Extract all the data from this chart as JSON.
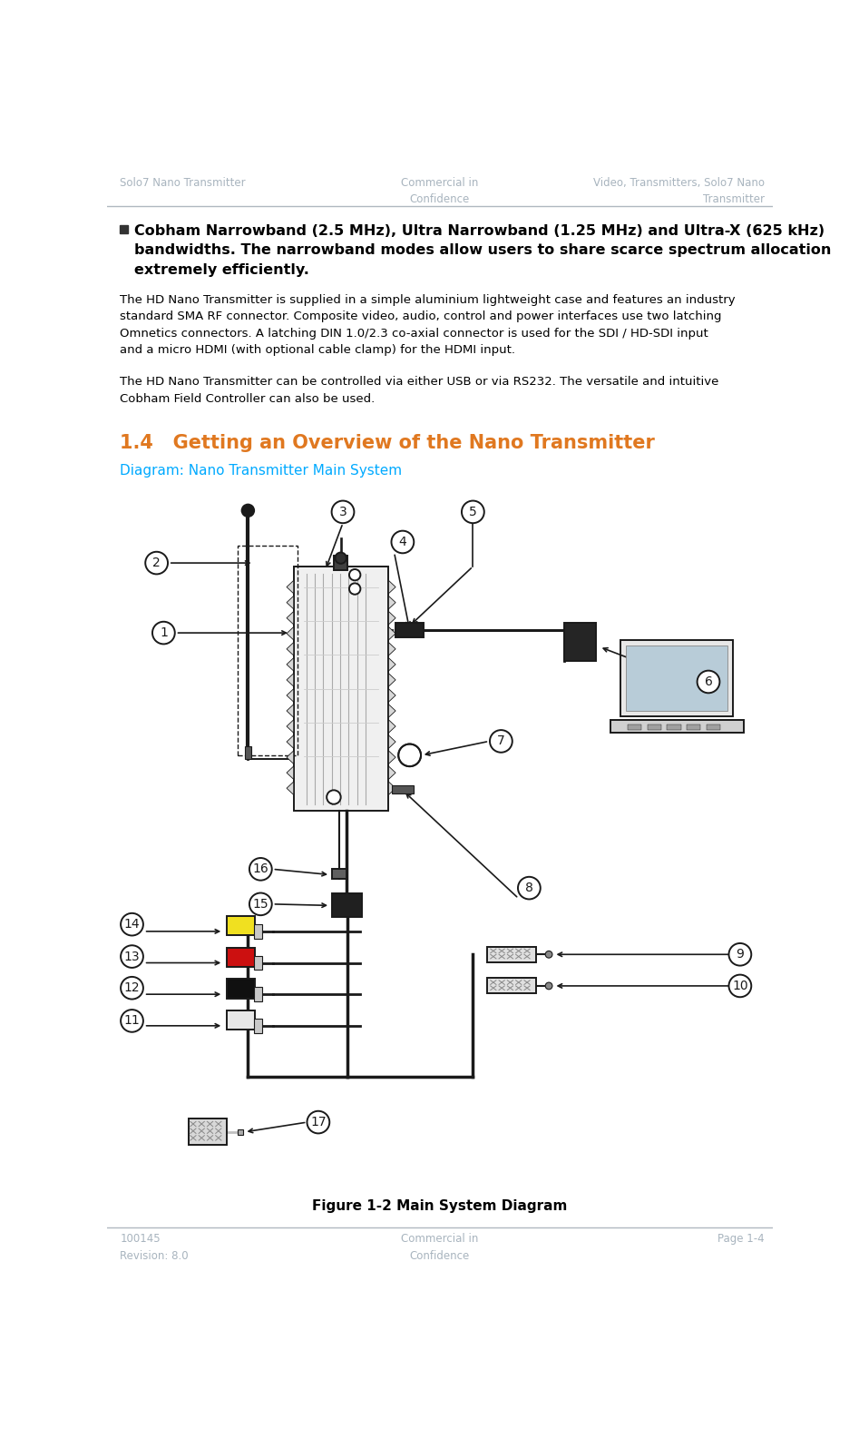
{
  "header_left": "Solo7 Nano Transmitter",
  "header_center": "Commercial in\nConfidence",
  "header_right": "Video, Transmitters, Solo7 Nano\nTransmitter",
  "header_color": "#a8b4be",
  "footer_left": "100145\nRevision: 8.0",
  "footer_center": "Commercial in\nConfidence",
  "footer_right": "Page 1-4",
  "footer_color": "#a8b4be",
  "section_title": "1.4   Getting an Overview of the Nano Transmitter",
  "section_title_color": "#e07820",
  "diagram_label": "Diagram: Nano Transmitter Main System",
  "diagram_label_color": "#00aaff",
  "figure_caption": "Figure 1-2 Main System Diagram",
  "bullet_text": "Cobham Narrowband (2.5 MHz), Ultra Narrowband (1.25 MHz) and Ultra-X (625 kHz)\nbandwidths. The narrowband modes allow users to share scarce spectrum allocation\nextremely efficiently.",
  "para1": "The HD Nano Transmitter is supplied in a simple aluminium lightweight case and features an industry\nstandard SMA RF connector. Composite video, audio, control and power interfaces use two latching\nOmnetics connectors. A latching DIN 1.0/2.3 co-axial connector is used for the SDI / HD-SDI input\nand a micro HDMI (with optional cable clamp) for the HDMI input.",
  "para2": "The HD Nano Transmitter can be controlled via either USB or via RS232. The versatile and intuitive\nCobham Field Controller can also be used.",
  "bg_color": "#ffffff",
  "text_color": "#000000",
  "line_color": "#b0b8c0"
}
